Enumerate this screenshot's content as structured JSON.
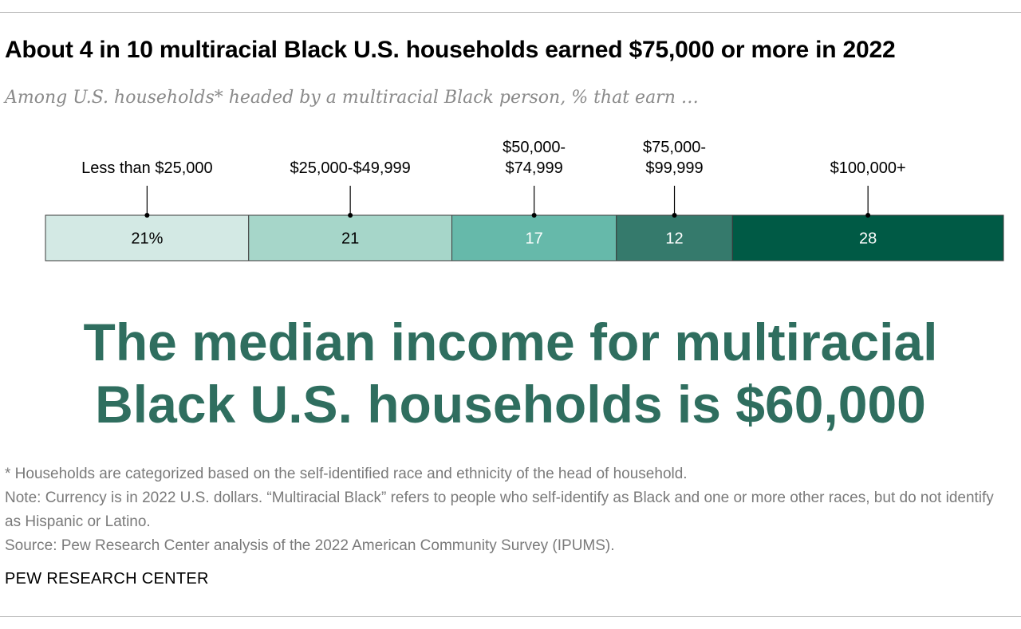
{
  "header": {
    "title": "About 4 in 10 multiracial Black U.S. households earned $75,000 or more in 2022",
    "subtitle": "Among U.S. households* headed by a multiracial Black person, % that earn …"
  },
  "chart_data": {
    "type": "bar",
    "orientation": "horizontal-stacked",
    "categories": [
      [
        "Less than $25,000"
      ],
      [
        "$25,000-$49,999"
      ],
      [
        "$50,000-",
        "$74,999"
      ],
      [
        "$75,000-",
        "$99,999"
      ],
      [
        "$100,000+"
      ]
    ],
    "values": [
      21,
      21,
      17,
      12,
      28
    ],
    "value_labels": [
      "21%",
      "21",
      "17",
      "12",
      "28"
    ],
    "colors": [
      "#d3e9e4",
      "#a6d6c9",
      "#66b9aa",
      "#357a6c",
      "#005a45"
    ],
    "label_colors": [
      "#000000",
      "#000000",
      "#ffffff",
      "#ffffff",
      "#ffffff"
    ]
  },
  "headline": {
    "line1": "The median income for multiracial",
    "line2": "Black U.S. households is $60,000"
  },
  "notes": {
    "footnote": "* Households are categorized based on the self-identified race and ethnicity of the head of household.",
    "note": "Note: Currency is in 2022 U.S. dollars. “Multiracial Black” refers to people who self-identify as Black and one or more other races, but do not identify as Hispanic or Latino.",
    "source": "Source: Pew Research Center analysis of the 2022 American Community Survey (IPUMS)."
  },
  "brand": "PEW RESEARCH CENTER"
}
